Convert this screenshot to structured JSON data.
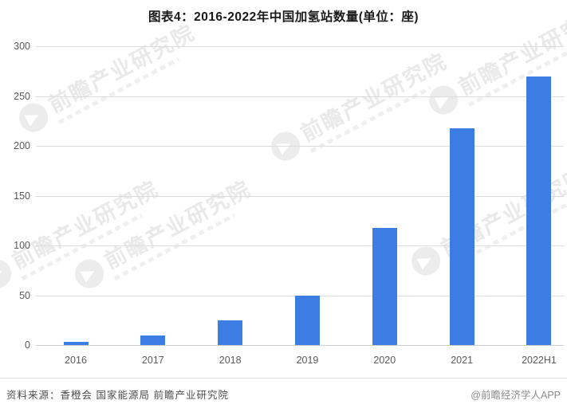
{
  "header": {
    "title": "图表4：2016-2022年中国加氢站数量(单位：座)"
  },
  "chart_data": {
    "type": "bar",
    "title": "图表4：2016-2022年中国加氢站数量(单位：座)",
    "categories": [
      "2016",
      "2017",
      "2018",
      "2019",
      "2020",
      "2021",
      "2022H1"
    ],
    "values": [
      3,
      10,
      25,
      50,
      118,
      218,
      270
    ],
    "xlabel": "",
    "ylabel": "",
    "unit": "座",
    "ylim": [
      0,
      300
    ],
    "yticks": [
      0,
      50,
      100,
      150,
      200,
      250,
      300
    ],
    "grid": true,
    "legend": "none",
    "bar_color": "#3b7de2"
  },
  "watermark": {
    "text": "前瞻产业研究院"
  },
  "footer": {
    "source": "资料来源：香橙会 国家能源局 前瞻产业研究院",
    "credit": "@前瞻经济学人APP"
  },
  "colors": {
    "bar": "#3b7de2",
    "gridline": "#dcdcdc",
    "axis_text": "#595959",
    "title_text": "#1a1a1a",
    "source_text": "#4d4d4d",
    "credit_text": "#8c8c8c",
    "watermark": "#e9e9e9"
  }
}
